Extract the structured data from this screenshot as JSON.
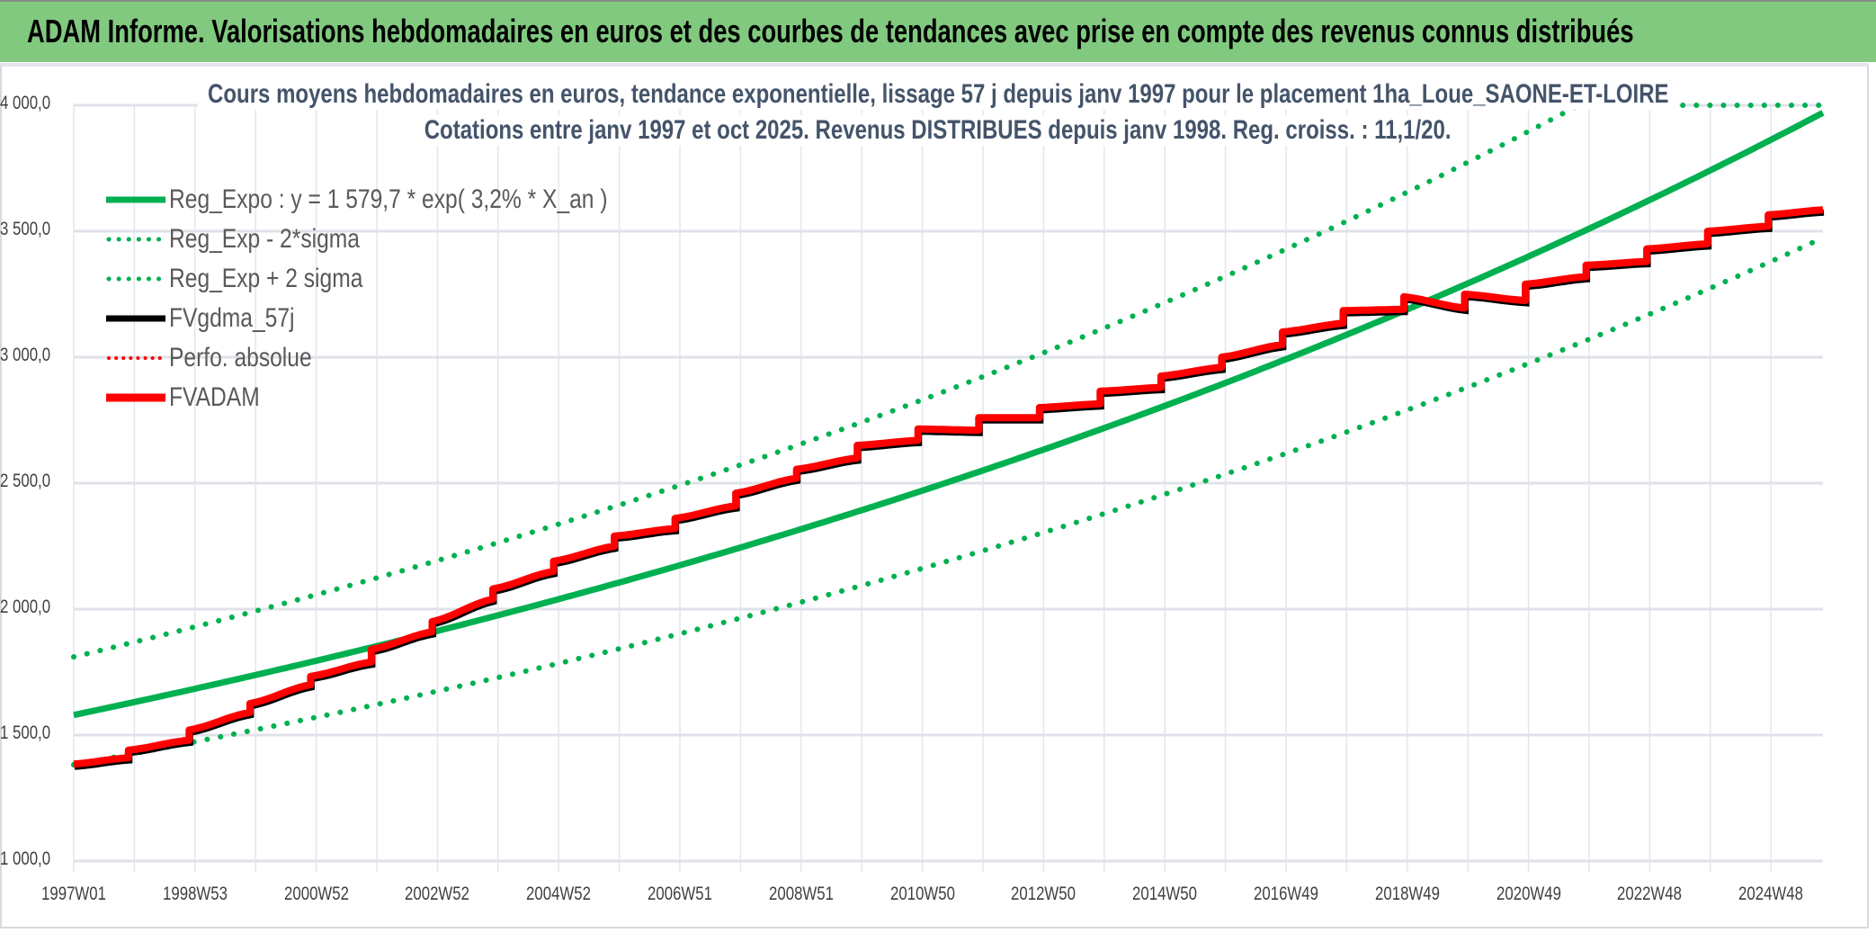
{
  "header": {
    "title": "ADAM Informe. Valorisations hebdomadaires en euros et des courbes de tendances avec prise en compte des revenus connus distribués"
  },
  "chart_data": {
    "type": "line",
    "title": "Cours moyens hebdomadaires en euros, tendance exponentielle, lissage 57 j depuis janv 1997 pour le placement 1ha_Loue_SAONE-ET-LOIRE",
    "subtitle": "Cotations entre janv 1997 et oct 2025. Revenus DISTRIBUES depuis janv 1998. Reg. croiss. : 11,1/20.",
    "xlabel": "",
    "ylabel": "",
    "ylim": [
      1000,
      4000
    ],
    "y_ticks": [
      "1 000,0",
      "1 500,0",
      "2 000,0",
      "2 500,0",
      "3 000,0",
      "3 500,0",
      "4 000,0"
    ],
    "y_tick_values": [
      1000,
      1500,
      2000,
      2500,
      3000,
      3500,
      4000
    ],
    "x_ticks": [
      "1997W01",
      "1998W53",
      "2000W52",
      "2002W52",
      "2004W52",
      "2006W51",
      "2008W51",
      "2010W50",
      "2012W50",
      "2014W50",
      "2016W49",
      "2018W49",
      "2020W49",
      "2022W48",
      "2024W48"
    ],
    "x_range_years": [
      0,
      28.8
    ],
    "grid": true,
    "legend_position": "top-left",
    "regression": {
      "a": 1579.7,
      "rate": 0.032,
      "minus_2sigma_factor": 0.875,
      "plus_2sigma_factor": 1.146
    },
    "series": [
      {
        "name": "Reg_Expo : y = 1 579,7 * exp( 3,2% *  X_an )",
        "color": "#00b050",
        "style": "solid"
      },
      {
        "name": "Reg_Exp - 2*sigma",
        "color": "#00b050",
        "style": "dotted"
      },
      {
        "name": "Reg_Exp + 2 sigma",
        "color": "#00b050",
        "style": "dotted"
      },
      {
        "name": "FVgdma_57j",
        "color": "#000000",
        "style": "solid"
      },
      {
        "name": "Perfo. absolue",
        "color": "#ff0000",
        "style": "dotted"
      },
      {
        "name": "FVADAM",
        "color": "#ff0000",
        "style": "solid"
      }
    ],
    "fvadam_start": [
      0,
      1385
    ],
    "fvadam_steps": [
      [
        0.9,
        1410,
        1440
      ],
      [
        1.9,
        1480,
        1520
      ],
      [
        2.9,
        1590,
        1625
      ],
      [
        3.9,
        1700,
        1733
      ],
      [
        4.9,
        1790,
        1840
      ],
      [
        5.9,
        1910,
        1950
      ],
      [
        6.9,
        2040,
        2080
      ],
      [
        7.9,
        2150,
        2190
      ],
      [
        8.9,
        2250,
        2290
      ],
      [
        9.9,
        2320,
        2360
      ],
      [
        10.9,
        2410,
        2460
      ],
      [
        11.9,
        2520,
        2555
      ],
      [
        12.9,
        2600,
        2650
      ],
      [
        13.9,
        2670,
        2715
      ],
      [
        14.9,
        2710,
        2760
      ],
      [
        15.9,
        2760,
        2800
      ],
      [
        16.9,
        2815,
        2865
      ],
      [
        17.9,
        2880,
        2925
      ],
      [
        18.9,
        2960,
        3000
      ],
      [
        19.9,
        3050,
        3100
      ],
      [
        20.9,
        3135,
        3185
      ],
      [
        21.9,
        3190,
        3240
      ],
      [
        22.9,
        3195,
        3250
      ],
      [
        23.9,
        3225,
        3290
      ],
      [
        24.9,
        3320,
        3365
      ],
      [
        25.9,
        3380,
        3430
      ],
      [
        26.9,
        3450,
        3500
      ],
      [
        27.9,
        3520,
        3565
      ]
    ],
    "fvadam_end": [
      28.8,
      3585
    ]
  }
}
